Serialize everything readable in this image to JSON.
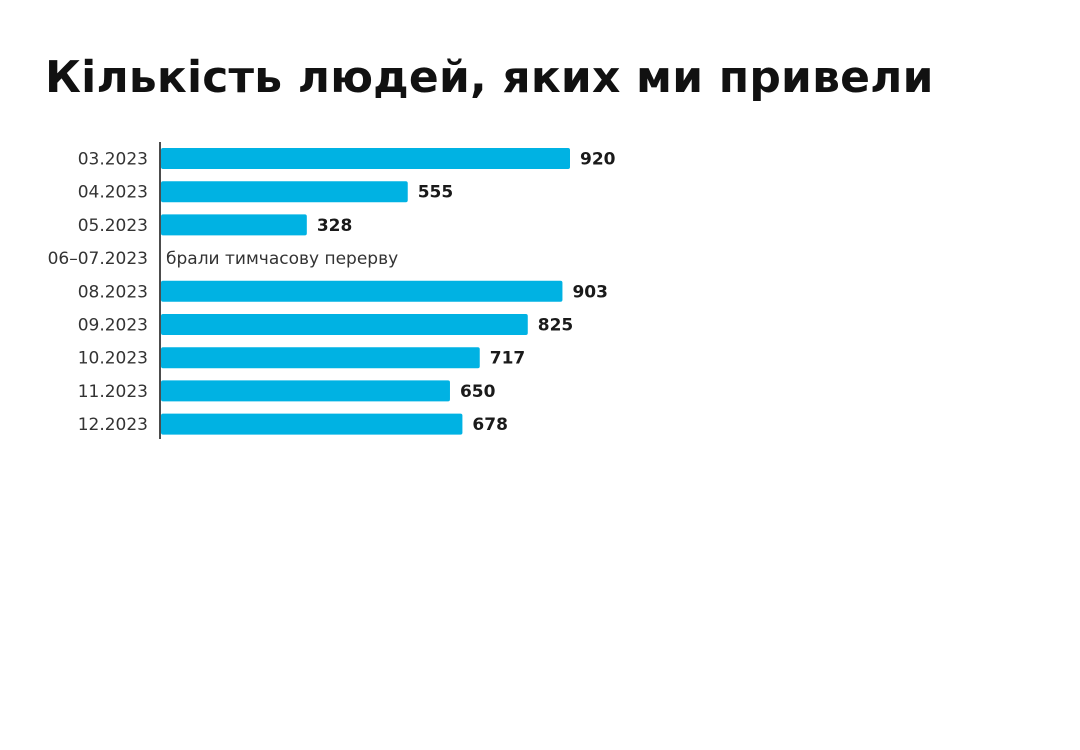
{
  "title": "Кількість людей, яких ми привели",
  "colors": {
    "bar": "#00b2e3",
    "axis": "#111111",
    "text": "#333333",
    "value_text": "#1a1a1a"
  },
  "chart_data": {
    "type": "bar",
    "orientation": "horizontal",
    "title": "Кількість людей, яких ми привели",
    "xlabel": "",
    "ylabel": "",
    "xlim": [
      0,
      920
    ],
    "grid": false,
    "legend": "none",
    "categories": [
      "03.2023",
      "04.2023",
      "05.2023",
      "06–07.2023",
      "08.2023",
      "09.2023",
      "10.2023",
      "11.2023",
      "12.2023"
    ],
    "values": [
      920,
      555,
      328,
      null,
      903,
      825,
      717,
      650,
      678
    ],
    "value_labels": [
      "920",
      "555",
      "328",
      "",
      "903",
      "825",
      "717",
      "650",
      "678"
    ],
    "annotations": [
      {
        "category": "06–07.2023",
        "text": "брали тимчасову перерву"
      }
    ]
  }
}
